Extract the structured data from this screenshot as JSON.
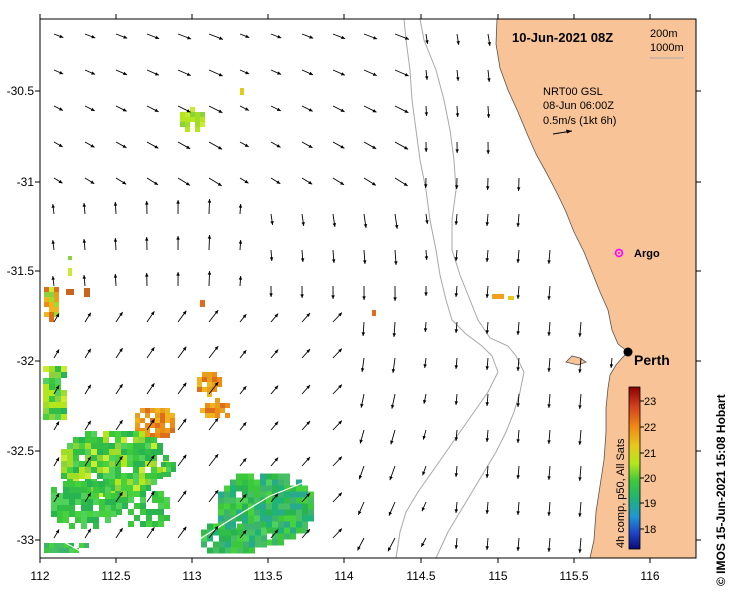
{
  "header": {
    "date_label": "10-Jun-2021 08Z",
    "contour_1": "200m",
    "contour_2": "1000m"
  },
  "current_legend": {
    "source": "NRT00 GSL",
    "date": "08-Jun 06:00Z",
    "scale": "0.5m/s (1kt 6h)"
  },
  "places": {
    "argo_label": "Argo",
    "city_label": "Perth"
  },
  "colorbar": {
    "title": "4h comp, p50, All Sats",
    "ticks": [
      "23",
      "22",
      "21",
      "20",
      "19",
      "18"
    ]
  },
  "credit": "© IMOS 15-Jun-2021 15:08 Hobart",
  "axes": {
    "x_ticks": [
      "112",
      "112.5",
      "113",
      "113.5",
      "114",
      "114.5",
      "115",
      "115.5",
      "116"
    ],
    "y_ticks": [
      "-30.5",
      "-31",
      "-31.5",
      "-32",
      "-32.5",
      "-33"
    ]
  },
  "colors": {
    "land": "#f8c396",
    "arrow": "#000000",
    "argo": "#ff00ff",
    "contour": "#a8a8a8"
  }
}
